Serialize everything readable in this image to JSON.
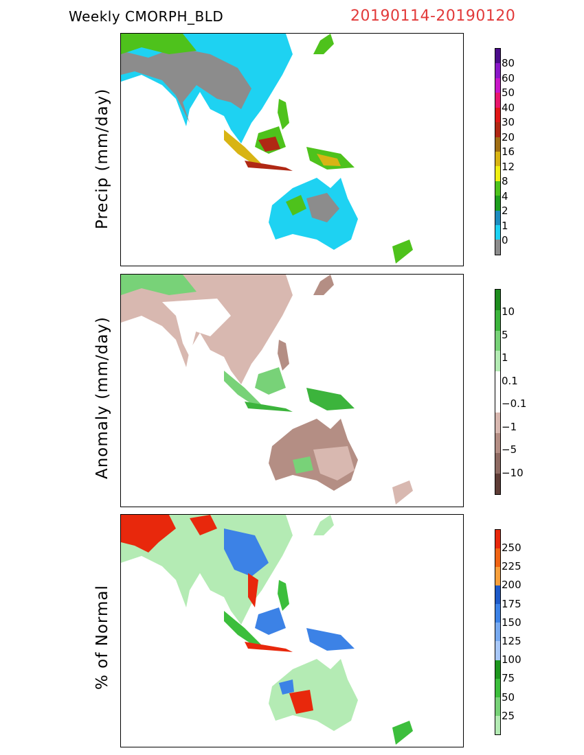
{
  "header": {
    "title": "Weekly  CMORPH_BLD",
    "date_range": "20190114-20190120"
  },
  "panels": [
    {
      "ylabel": "Precip  (mm/day)",
      "colorbar": {
        "labels": [
          "80",
          "60",
          "50",
          "40",
          "30",
          "20",
          "16",
          "12",
          "8",
          "4",
          "2",
          "1",
          "0"
        ],
        "colors": [
          "#4b0c8a",
          "#8a18c8",
          "#c818c8",
          "#e8186c",
          "#e01818",
          "#b02814",
          "#a06e14",
          "#d8b414",
          "#f0f014",
          "#4ec21c",
          "#1e9e1e",
          "#1e8cbe",
          "#1ed2f2",
          "#8c8c8c"
        ]
      },
      "colors": {
        "land": "#1ed2f2",
        "dry": "#8c8c8c",
        "wet": "#4ec21c",
        "heavy": "#d8b414",
        "extreme": "#b02814"
      }
    },
    {
      "ylabel": "Anomaly  (mm/day)",
      "colorbar": {
        "labels": [
          "10",
          "5",
          "1",
          "0.1",
          "−0.1",
          "−1",
          "−5",
          "−10"
        ],
        "colors": [
          "#1e8c1e",
          "#3cb43c",
          "#78d278",
          "#b4ebb4",
          "#ffffff",
          "#ffffff",
          "#d8b8b0",
          "#b48e84",
          "#8e6a62",
          "#5e3c36"
        ]
      },
      "colors": {
        "land": "#d8b8b0",
        "dry": "#b48e84",
        "wet": "#78d278",
        "neutral": "#ffffff"
      }
    },
    {
      "ylabel": "% of Normal",
      "colorbar": {
        "labels": [
          "250",
          "225",
          "200",
          "175",
          "150",
          "125",
          "100",
          "75",
          "50",
          "25"
        ],
        "colors": [
          "#e8280c",
          "#f06414",
          "#f8a03c",
          "#1e5ac8",
          "#3c82e6",
          "#78aaf0",
          "#a8c8f8",
          "#1e961e",
          "#3cbe3c",
          "#78d278",
          "#b4ebb4"
        ]
      },
      "colors": {
        "land": "#b4ebb4",
        "high": "#e8280c",
        "mid": "#3c82e6",
        "green": "#3cbe3c"
      }
    }
  ]
}
